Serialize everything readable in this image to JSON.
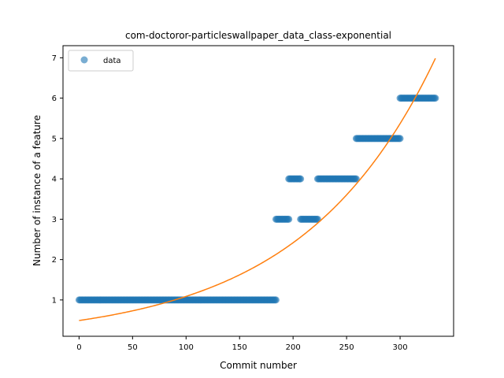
{
  "chart_data": {
    "type": "scatter",
    "title": "com-doctoror-particleswallpaper_data_class-exponential",
    "xlabel": "Commit number",
    "ylabel": "Number of instance of a feature",
    "xlim": [
      -15,
      350
    ],
    "ylim": [
      0.1,
      7.3
    ],
    "x_ticks": [
      0,
      50,
      100,
      150,
      200,
      250,
      300
    ],
    "y_ticks": [
      1,
      2,
      3,
      4,
      5,
      6,
      7
    ],
    "grid": false,
    "legend_position": "top-left",
    "series": [
      {
        "name": "data",
        "kind": "scatter",
        "color": "#1f77b4",
        "segments": [
          {
            "x_start": 0,
            "x_end": 184,
            "y": 1
          },
          {
            "x_start": 184,
            "x_end": 196,
            "y": 3
          },
          {
            "x_start": 196,
            "x_end": 207,
            "y": 4
          },
          {
            "x_start": 207,
            "x_end": 223,
            "y": 3
          },
          {
            "x_start": 223,
            "x_end": 259,
            "y": 4
          },
          {
            "x_start": 259,
            "x_end": 300,
            "y": 5
          },
          {
            "x_start": 300,
            "x_end": 333,
            "y": 6
          }
        ]
      },
      {
        "name": "",
        "kind": "line",
        "color": "#ff7f0e",
        "a": 0.49,
        "b": 0.00798,
        "x_range": [
          0,
          333
        ]
      }
    ]
  }
}
